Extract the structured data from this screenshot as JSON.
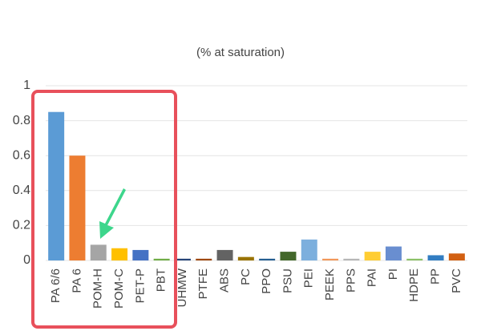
{
  "chart_data": {
    "type": "bar",
    "title": "(% at saturation)",
    "categories": [
      "PA 6/6",
      "PA 6",
      "POM-H",
      "POM-C",
      "PET-P",
      "PBT",
      "UHMW",
      "PTFE",
      "ABS",
      "PC",
      "PPO",
      "PSU",
      "PEI",
      "PEEK",
      "PPS",
      "PAI",
      "PI",
      "HDPE",
      "PP",
      "PVC"
    ],
    "values": [
      0.85,
      0.6,
      0.09,
      0.07,
      0.06,
      0.01,
      0.01,
      0.01,
      0.06,
      0.02,
      0.01,
      0.05,
      0.12,
      0.01,
      0.01,
      0.05,
      0.08,
      0.01,
      0.03,
      0.04
    ],
    "colors": [
      "#5b9bd5",
      "#ed7d31",
      "#a5a5a5",
      "#ffc000",
      "#4472c4",
      "#70ad47",
      "#264478",
      "#9e480e",
      "#636363",
      "#997300",
      "#255e91",
      "#43682b",
      "#7cafdd",
      "#f1975a",
      "#b7b7b7",
      "#ffcd33",
      "#698ed0",
      "#8cc168",
      "#327dc2",
      "#d26012"
    ],
    "ylim": [
      0,
      1
    ],
    "yticks": [
      0,
      0.2,
      0.4,
      0.6,
      0.8,
      1
    ],
    "grid": true
  }
}
